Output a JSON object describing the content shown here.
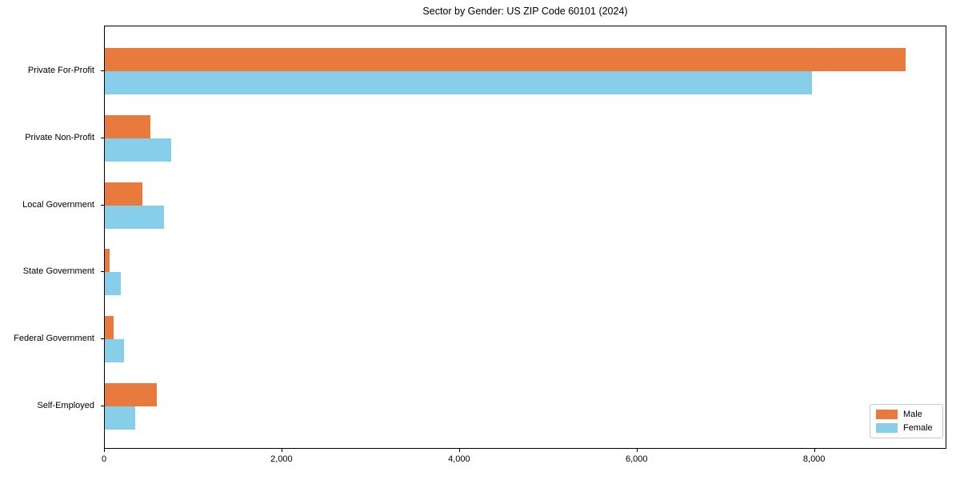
{
  "chart_data": {
    "type": "bar",
    "orientation": "horizontal",
    "title": "Sector by Gender: US ZIP Code 60101 (2024)",
    "categories": [
      "Private For-Profit",
      "Private Non-Profit",
      "Local Government",
      "State Government",
      "Federal Government",
      "Self-Employed"
    ],
    "series": [
      {
        "name": "Male",
        "color": "#e97a3d",
        "values": [
          9040,
          515,
          425,
          55,
          100,
          585
        ]
      },
      {
        "name": "Female",
        "color": "#87ceeb",
        "values": [
          7980,
          750,
          665,
          180,
          215,
          340
        ]
      }
    ],
    "xlabel": "",
    "ylabel": "",
    "xlim": [
      0,
      9490
    ],
    "x_ticks": [
      0,
      2000,
      4000,
      6000,
      8000
    ],
    "x_tick_labels": [
      "0",
      "2,000",
      "4,000",
      "6,000",
      "8,000"
    ],
    "grid": false,
    "legend_position": "lower right",
    "background_color": "#ffffff",
    "spine_color": "#000000"
  }
}
